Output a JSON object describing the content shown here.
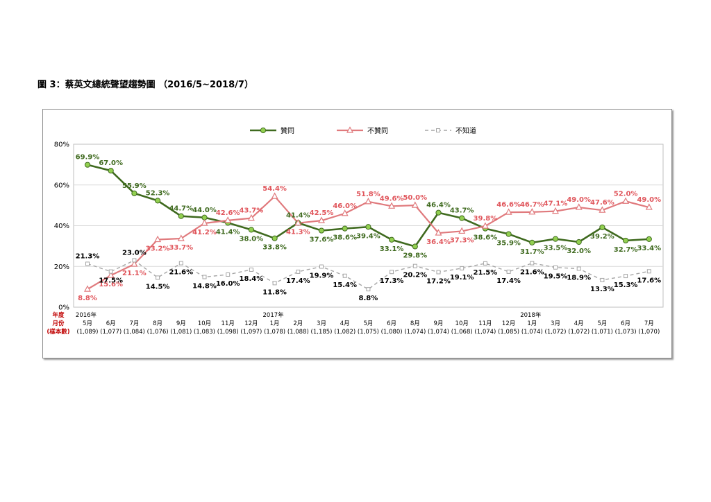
{
  "title": "圖 3：蔡英文總統聲望趨勢圖 （2016/5~2018/7）",
  "colors": {
    "approve": "#3f6a1f",
    "approve_marker": "#92d050",
    "disapprove": "#e07a7d",
    "dontknow": "#a5a5a5",
    "approve_label": "#3f6a1f",
    "disapprove_label": "#e0565c",
    "dontknow_label": "#000000"
  },
  "axis_side_label": [
    "年度",
    "月份",
    "(樣本數)"
  ],
  "chart_data": {
    "type": "line",
    "ylim": [
      0,
      80
    ],
    "y_ticks": [
      "0%",
      "20%",
      "40%",
      "60%",
      "80%"
    ],
    "grid": true,
    "legend_position": "top-center",
    "categories": [
      {
        "year": "2016年",
        "month": "5月",
        "sample": "(1,089)"
      },
      {
        "year": "",
        "month": "6月",
        "sample": "(1,077)"
      },
      {
        "year": "",
        "month": "7月",
        "sample": "(1,084)"
      },
      {
        "year": "",
        "month": "8月",
        "sample": "(1,076)"
      },
      {
        "year": "",
        "month": "9月",
        "sample": "(1,081)"
      },
      {
        "year": "",
        "month": "10月",
        "sample": "(1,083)"
      },
      {
        "year": "",
        "month": "11月",
        "sample": "(1,098)"
      },
      {
        "year": "",
        "month": "12月",
        "sample": "(1,097)"
      },
      {
        "year": "2017年",
        "month": "1月",
        "sample": "(1,078)"
      },
      {
        "year": "",
        "month": "2月",
        "sample": "(1,088)"
      },
      {
        "year": "",
        "month": "3月",
        "sample": "(1,185)"
      },
      {
        "year": "",
        "month": "4月",
        "sample": "(1,082)"
      },
      {
        "year": "",
        "month": "5月",
        "sample": "(1,075)"
      },
      {
        "year": "",
        "month": "6月",
        "sample": "(1,080)"
      },
      {
        "year": "",
        "month": "8月",
        "sample": "(1,074)"
      },
      {
        "year": "",
        "month": "9月",
        "sample": "(1,074)"
      },
      {
        "year": "",
        "month": "10月",
        "sample": "(1,068)"
      },
      {
        "year": "",
        "month": "11月",
        "sample": "(1,074)"
      },
      {
        "year": "",
        "month": "12月",
        "sample": "(1,085)"
      },
      {
        "year": "2018年",
        "month": "1月",
        "sample": "(1,074)"
      },
      {
        "year": "",
        "month": "3月",
        "sample": "(1,072)"
      },
      {
        "year": "",
        "month": "4月",
        "sample": "(1,072)"
      },
      {
        "year": "",
        "month": "5月",
        "sample": "(1,071)"
      },
      {
        "year": "",
        "month": "6月",
        "sample": "(1,073)"
      },
      {
        "year": "",
        "month": "7月",
        "sample": "(1,070)"
      }
    ],
    "series": [
      {
        "key": "approve",
        "name": "贊同",
        "values": [
          69.9,
          67.0,
          55.9,
          52.3,
          44.7,
          44.0,
          41.4,
          38.0,
          33.8,
          41.4,
          37.6,
          38.6,
          39.4,
          33.1,
          29.8,
          46.4,
          43.7,
          38.6,
          35.9,
          31.7,
          33.5,
          32.0,
          39.2,
          32.7,
          33.4
        ],
        "labels": [
          "69.9%",
          "67.0%",
          "55.9%",
          "52.3%",
          "44.7%",
          "44.0%",
          "41.4%",
          "38.0%",
          "33.8%",
          "41.4%",
          "37.6%",
          "38.6%",
          "39.4%",
          "33.1%",
          "29.8%",
          "46.4%",
          "43.7%",
          "38.6%",
          "35.9%",
          "31.7%",
          "33.5%",
          "32.0%",
          "39.2%",
          "32.7%",
          "33.4%"
        ]
      },
      {
        "key": "disapprove",
        "name": "不贊同",
        "values": [
          8.8,
          15.6,
          21.1,
          33.2,
          33.7,
          41.2,
          42.6,
          43.7,
          54.4,
          41.3,
          42.5,
          46.0,
          51.8,
          49.6,
          50.0,
          36.4,
          37.3,
          39.8,
          46.6,
          46.7,
          47.1,
          49.0,
          47.6,
          52.0,
          49.0
        ],
        "labels": [
          "8.8%",
          "15.6%",
          "21.1%",
          "33.2%",
          "33.7%",
          "41.2%",
          "42.6%",
          "43.7%",
          "54.4%",
          "41.3%",
          "42.5%",
          "46.0%",
          "51.8%",
          "49.6%",
          "50.0%",
          "36.4%",
          "37.3%",
          "39.8%",
          "46.6%",
          "46.7%",
          "47.1%",
          "49.0%",
          "47.6%",
          "52.0%",
          "49.0%"
        ]
      },
      {
        "key": "dontknow",
        "name": "不知道",
        "values": [
          21.3,
          17.5,
          23.0,
          14.5,
          21.6,
          14.8,
          16.0,
          18.4,
          11.8,
          17.4,
          19.9,
          15.4,
          8.8,
          17.3,
          20.2,
          17.2,
          19.1,
          21.5,
          17.4,
          21.6,
          19.5,
          18.9,
          13.3,
          15.3,
          17.6
        ],
        "labels": [
          "21.3%",
          "17.5%",
          "23.0%",
          "14.5%",
          "21.6%",
          "14.8%",
          "16.0%",
          "18.4%",
          "11.8%",
          "17.4%",
          "19.9%",
          "15.4%",
          "8.8%",
          "17.3%",
          "20.2%",
          "17.2%",
          "19.1%",
          "21.5%",
          "17.4%",
          "21.6%",
          "19.5%",
          "18.9%",
          "13.3%",
          "15.3%",
          "17.6%"
        ]
      }
    ]
  }
}
